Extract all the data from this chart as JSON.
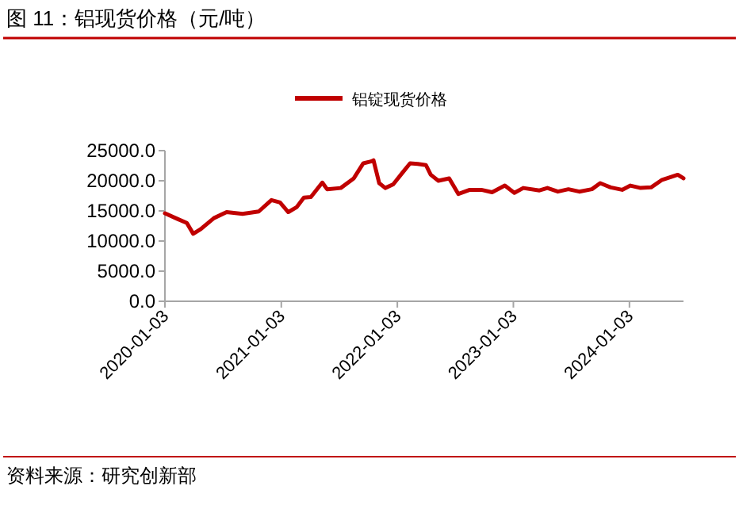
{
  "chart_data": {
    "type": "line",
    "title": "图 11：铝现货价格（元/吨）",
    "annotations": [
      "资料来源：研究创新部"
    ],
    "x": [
      "2020-01-03",
      "2020-02-10",
      "2020-03-12",
      "2020-04-01",
      "2020-04-25",
      "2020-06-05",
      "2020-07-15",
      "2020-09-03",
      "2020-10-24",
      "2020-12-03",
      "2020-12-30",
      "2021-01-25",
      "2021-02-20",
      "2021-03-15",
      "2021-04-06",
      "2021-05-12",
      "2021-05-27",
      "2021-07-09",
      "2021-08-19",
      "2021-09-18",
      "2021-10-12",
      "2021-10-20",
      "2021-11-07",
      "2021-11-26",
      "2021-12-21",
      "2022-01-17",
      "2022-02-12",
      "2022-03-08",
      "2022-04-03",
      "2022-04-18",
      "2022-05-12",
      "2022-06-15",
      "2022-07-14",
      "2022-08-19",
      "2022-09-24",
      "2022-10-28",
      "2022-12-07",
      "2023-01-06",
      "2023-02-03",
      "2023-03-26",
      "2023-04-20",
      "2023-05-23",
      "2023-06-25",
      "2023-07-29",
      "2023-09-07",
      "2023-10-03",
      "2023-11-05",
      "2023-12-11",
      "2024-01-06",
      "2024-02-07",
      "2024-03-11",
      "2024-04-13",
      "2024-06-03",
      "2024-06-21"
    ],
    "series": [
      {
        "name": "铝锭现货价格",
        "color": "#c00000",
        "values": [
          14600,
          13700,
          13000,
          11200,
          12000,
          13800,
          14800,
          14500,
          14900,
          16800,
          16400,
          14800,
          15600,
          17200,
          17300,
          19700,
          18600,
          18800,
          20400,
          22900,
          23200,
          23400,
          19600,
          18800,
          19400,
          21200,
          22900,
          22800,
          22600,
          21000,
          20000,
          20400,
          17800,
          18500,
          18500,
          18100,
          19200,
          18000,
          18800,
          18400,
          18800,
          18200,
          18600,
          18200,
          18600,
          19600,
          18900,
          18500,
          19200,
          18800,
          18900,
          20100,
          21000,
          20400
        ]
      }
    ],
    "xlim": [
      "2020-01-03",
      "2024-06-21"
    ],
    "xticks": [
      "2020-01-03",
      "2021-01-03",
      "2022-01-03",
      "2023-01-03",
      "2024-01-03"
    ],
    "ylim": [
      0,
      25000
    ],
    "yticks": [
      {
        "value": 0,
        "label": "0.0"
      },
      {
        "value": 5000,
        "label": "5000.0"
      },
      {
        "value": 10000,
        "label": "10000.0"
      },
      {
        "value": 15000,
        "label": "15000.0"
      },
      {
        "value": 20000,
        "label": "20000.0"
      },
      {
        "value": 25000,
        "label": "25000.0"
      }
    ],
    "grid": false,
    "legend": "top",
    "marker": "none",
    "line_style": "solid"
  }
}
